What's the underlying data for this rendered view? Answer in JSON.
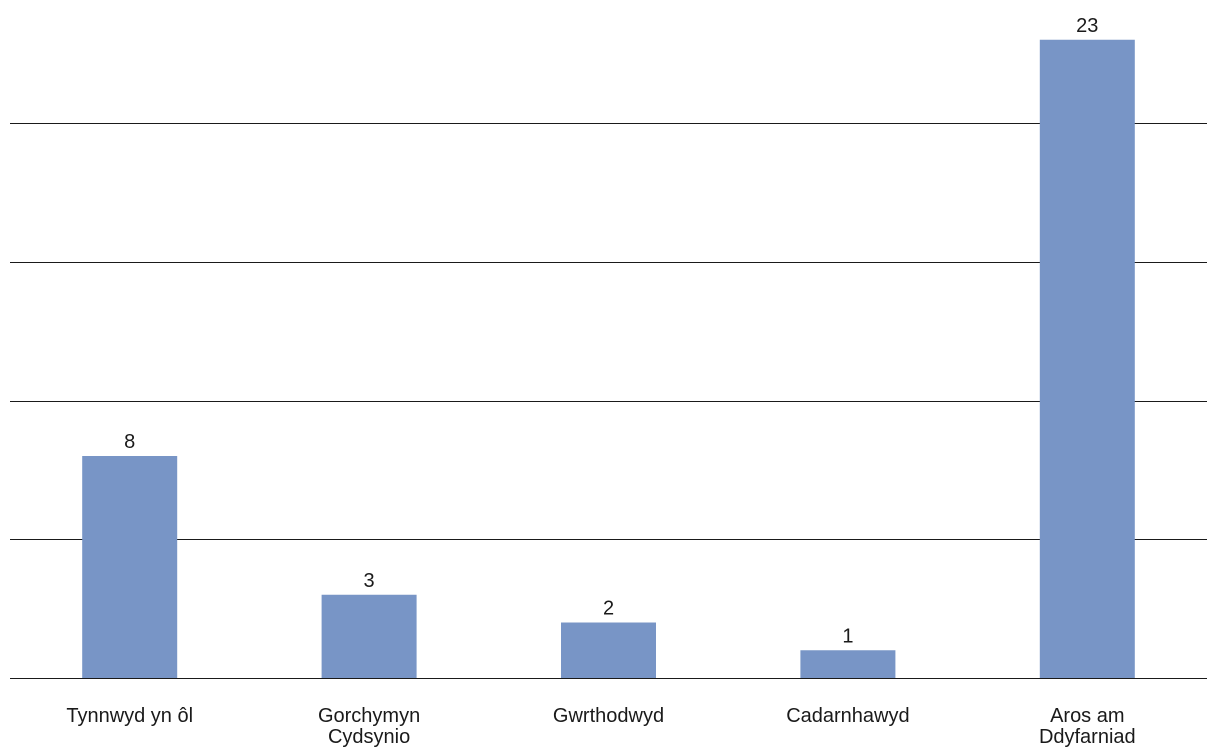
{
  "chart_data": {
    "type": "bar",
    "categories": [
      [
        "Tynnwyd yn ôl"
      ],
      [
        "Gorchymyn",
        "Cydsynio"
      ],
      [
        "Gwrthodwyd"
      ],
      [
        "Cadarnhawyd"
      ],
      [
        "Aros am",
        "Ddyfarniad"
      ]
    ],
    "values": [
      8,
      3,
      2,
      1,
      23
    ],
    "title": "",
    "xlabel": "",
    "ylabel": "",
    "ylim": [
      0,
      24
    ],
    "gridlines": [
      0,
      5,
      10,
      15,
      20
    ],
    "grid": true,
    "legend": "none",
    "data_labels": true,
    "bar_color": "#7895c6",
    "grid_color": "#1a1a1a"
  }
}
